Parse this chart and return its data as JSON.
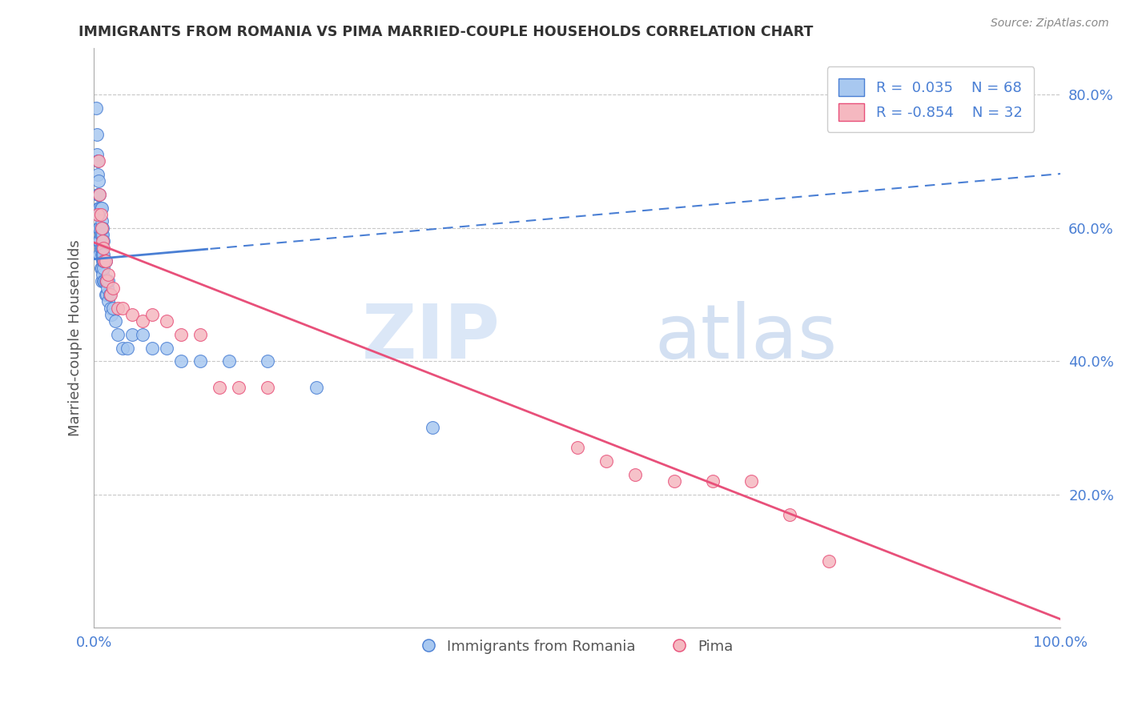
{
  "title": "IMMIGRANTS FROM ROMANIA VS PIMA MARRIED-COUPLE HOUSEHOLDS CORRELATION CHART",
  "source": "Source: ZipAtlas.com",
  "ylabel": "Married-couple Households",
  "xlim": [
    0,
    1.0
  ],
  "ylim": [
    0,
    0.87
  ],
  "blue_color": "#a8c8f0",
  "pink_color": "#f5b8c0",
  "blue_line_color": "#4a7fd4",
  "pink_line_color": "#e8507a",
  "blue_label": "Immigrants from Romania",
  "pink_label": "Pima",
  "watermark_zip": "ZIP",
  "watermark_atlas": "atlas",
  "blue_line_intercept": 0.553,
  "blue_line_slope": 0.128,
  "pink_line_intercept": 0.578,
  "pink_line_slope": -0.565,
  "blue_x": [
    0.002,
    0.003,
    0.003,
    0.004,
    0.004,
    0.004,
    0.005,
    0.005,
    0.005,
    0.005,
    0.005,
    0.005,
    0.006,
    0.006,
    0.006,
    0.006,
    0.006,
    0.007,
    0.007,
    0.007,
    0.007,
    0.007,
    0.008,
    0.008,
    0.008,
    0.008,
    0.008,
    0.008,
    0.008,
    0.009,
    0.009,
    0.009,
    0.009,
    0.009,
    0.009,
    0.01,
    0.01,
    0.01,
    0.01,
    0.01,
    0.011,
    0.011,
    0.012,
    0.012,
    0.012,
    0.013,
    0.013,
    0.014,
    0.015,
    0.015,
    0.016,
    0.017,
    0.018,
    0.02,
    0.022,
    0.025,
    0.03,
    0.035,
    0.04,
    0.05,
    0.06,
    0.075,
    0.09,
    0.11,
    0.14,
    0.18,
    0.23,
    0.35
  ],
  "blue_y": [
    0.78,
    0.74,
    0.71,
    0.68,
    0.65,
    0.7,
    0.63,
    0.65,
    0.67,
    0.6,
    0.62,
    0.58,
    0.56,
    0.58,
    0.6,
    0.63,
    0.65,
    0.54,
    0.57,
    0.59,
    0.6,
    0.63,
    0.52,
    0.54,
    0.56,
    0.57,
    0.59,
    0.61,
    0.63,
    0.53,
    0.55,
    0.56,
    0.57,
    0.59,
    0.6,
    0.52,
    0.54,
    0.55,
    0.56,
    0.58,
    0.52,
    0.55,
    0.5,
    0.52,
    0.55,
    0.5,
    0.52,
    0.51,
    0.49,
    0.52,
    0.5,
    0.48,
    0.47,
    0.48,
    0.46,
    0.44,
    0.42,
    0.42,
    0.44,
    0.44,
    0.42,
    0.42,
    0.4,
    0.4,
    0.4,
    0.4,
    0.36,
    0.3
  ],
  "pink_x": [
    0.004,
    0.005,
    0.006,
    0.007,
    0.008,
    0.009,
    0.01,
    0.011,
    0.012,
    0.013,
    0.015,
    0.017,
    0.02,
    0.025,
    0.03,
    0.04,
    0.05,
    0.06,
    0.075,
    0.09,
    0.11,
    0.13,
    0.15,
    0.18,
    0.5,
    0.53,
    0.56,
    0.6,
    0.64,
    0.68,
    0.72,
    0.76
  ],
  "pink_y": [
    0.62,
    0.7,
    0.65,
    0.62,
    0.6,
    0.58,
    0.57,
    0.55,
    0.55,
    0.52,
    0.53,
    0.5,
    0.51,
    0.48,
    0.48,
    0.47,
    0.46,
    0.47,
    0.46,
    0.44,
    0.44,
    0.36,
    0.36,
    0.36,
    0.27,
    0.25,
    0.23,
    0.22,
    0.22,
    0.22,
    0.17,
    0.1
  ]
}
